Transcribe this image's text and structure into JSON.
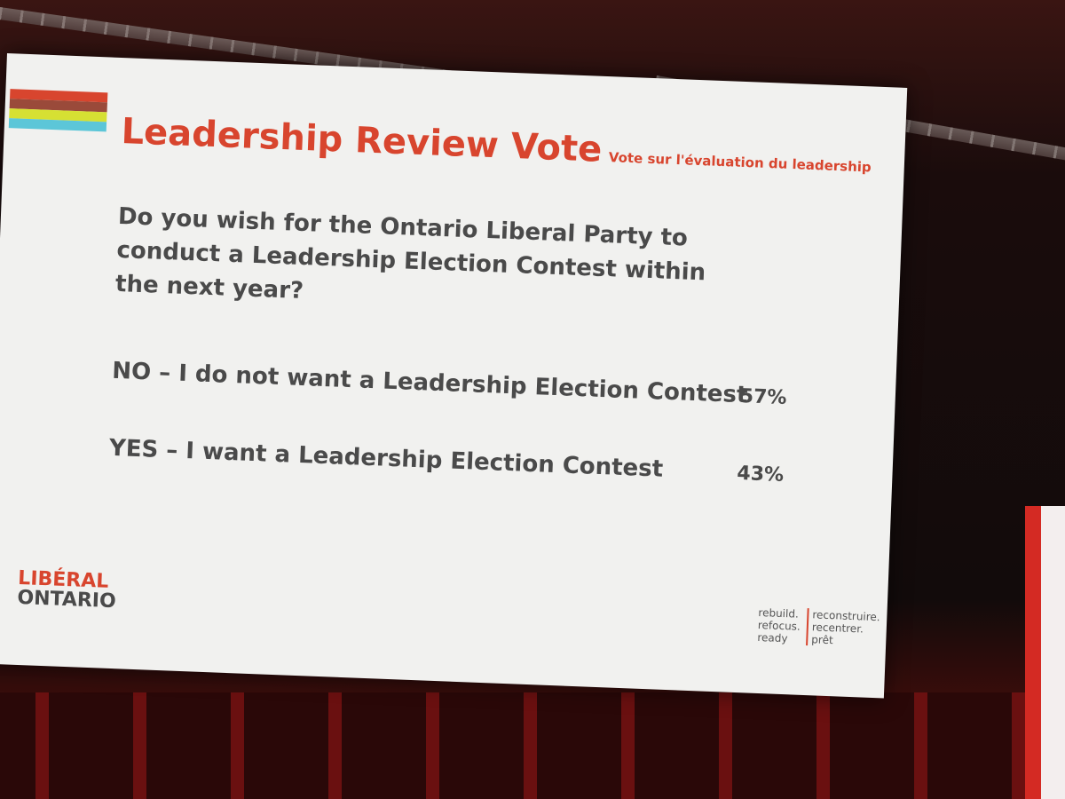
{
  "slide": {
    "title": "Leadership Review Vote",
    "subtitle": "Vote sur l'évaluation du leadership",
    "question": "Do you wish for the Ontario Liberal Party to conduct a Leadership Election Contest within the next year?",
    "options": [
      {
        "label": "NO – I do not want a Leadership Election Contest",
        "result": "57%"
      },
      {
        "label": "YES – I want a Leadership Election Contest",
        "result": "43%"
      }
    ],
    "logo": {
      "line1": "LIBÉRAL",
      "line2": "ONTARIO"
    },
    "tagline": {
      "english": [
        "rebuild.",
        "refocus.",
        "ready"
      ],
      "french": [
        "reconstruire.",
        "recentrer.",
        "prêt"
      ]
    }
  }
}
